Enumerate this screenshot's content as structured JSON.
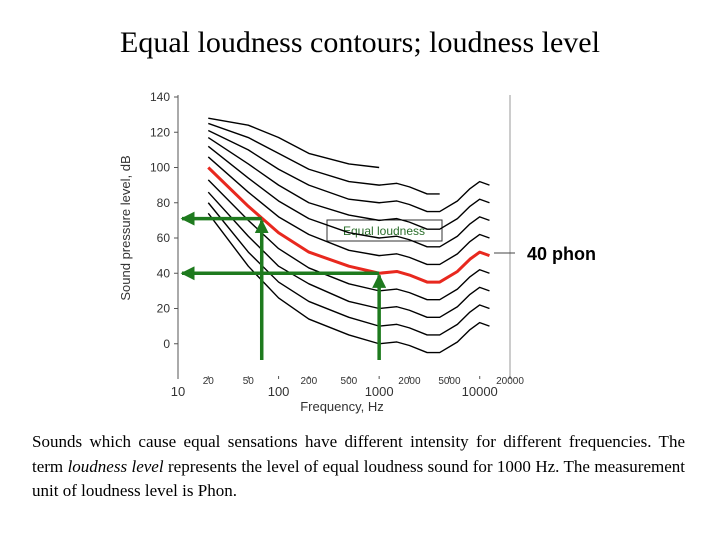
{
  "slide_title": "Equal loudness contours; loudness level",
  "chart_data": {
    "type": "line",
    "ylabel": "Sound pressure level, dB",
    "xlabel": "Frequency, Hz",
    "annotation": "Equal loudness",
    "xscale": "log",
    "xlim": [
      10,
      20000
    ],
    "ylim": [
      -20,
      140
    ],
    "xticks": [
      10,
      20,
      50,
      100,
      200,
      500,
      1000,
      2000,
      5000,
      10000,
      20000
    ],
    "yticks": [
      0,
      20,
      40,
      60,
      80,
      100,
      120,
      140
    ],
    "x": [
      20,
      50,
      100,
      200,
      500,
      1000,
      1500,
      2000,
      3000,
      4000,
      6000,
      8000,
      10000,
      12500
    ],
    "series": [
      {
        "color": "#000000",
        "values": [
          74,
          44,
          26,
          14,
          5,
          0,
          1,
          -1,
          -5,
          -5,
          1,
          8,
          12,
          10
        ]
      },
      {
        "color": "#000000",
        "values": [
          80,
          52,
          35,
          24,
          15,
          10,
          11,
          9,
          5,
          5,
          11,
          18,
          22,
          20
        ]
      },
      {
        "color": "#000000",
        "values": [
          86,
          61,
          44,
          34,
          24,
          20,
          21,
          19,
          15,
          15,
          21,
          28,
          32,
          30
        ]
      },
      {
        "color": "#000000",
        "values": [
          93,
          70,
          54,
          43,
          34,
          30,
          31,
          29,
          25,
          25,
          31,
          38,
          42,
          40
        ]
      },
      {
        "name": "40 phon",
        "color": "#e8281e",
        "values": [
          100,
          78,
          63,
          52,
          44,
          40,
          41,
          39,
          35,
          35,
          41,
          48,
          52,
          50
        ]
      },
      {
        "color": "#000000",
        "values": [
          106,
          86,
          72,
          62,
          53,
          50,
          51,
          49,
          45,
          45,
          51,
          58,
          62,
          60
        ]
      },
      {
        "color": "#000000",
        "values": [
          112,
          94,
          81,
          71,
          63,
          60,
          61,
          59,
          55,
          55,
          61,
          68,
          72,
          70
        ]
      },
      {
        "color": "#000000",
        "values": [
          117,
          102,
          90,
          80,
          73,
          70,
          71,
          69,
          65,
          65,
          71,
          78,
          82,
          80
        ]
      },
      {
        "color": "#000000",
        "values": [
          121,
          110,
          99,
          90,
          82,
          80,
          81,
          79,
          75,
          75,
          81,
          88,
          92,
          90
        ]
      },
      {
        "color": "#000000",
        "values": [
          125,
          117,
          108,
          99,
          92,
          90,
          91,
          89,
          85,
          85,
          null,
          null,
          null,
          null
        ]
      },
      {
        "color": "#000000",
        "values": [
          128,
          124,
          117,
          108,
          102,
          100,
          null,
          null,
          null,
          null,
          null,
          null,
          null,
          null
        ]
      }
    ],
    "markers": [
      {
        "x": 68,
        "y": 71
      },
      {
        "x": 1000,
        "y": 40
      }
    ],
    "marker_color": "#1e7a1e"
  },
  "body": [
    "Sounds which cause equal sensations have different intensity for different frequencies. The term ",
    "loudness level",
    " represents the level of equal loudness sound for 1000 Hz. The measurement unit of loudness level is Phon."
  ]
}
